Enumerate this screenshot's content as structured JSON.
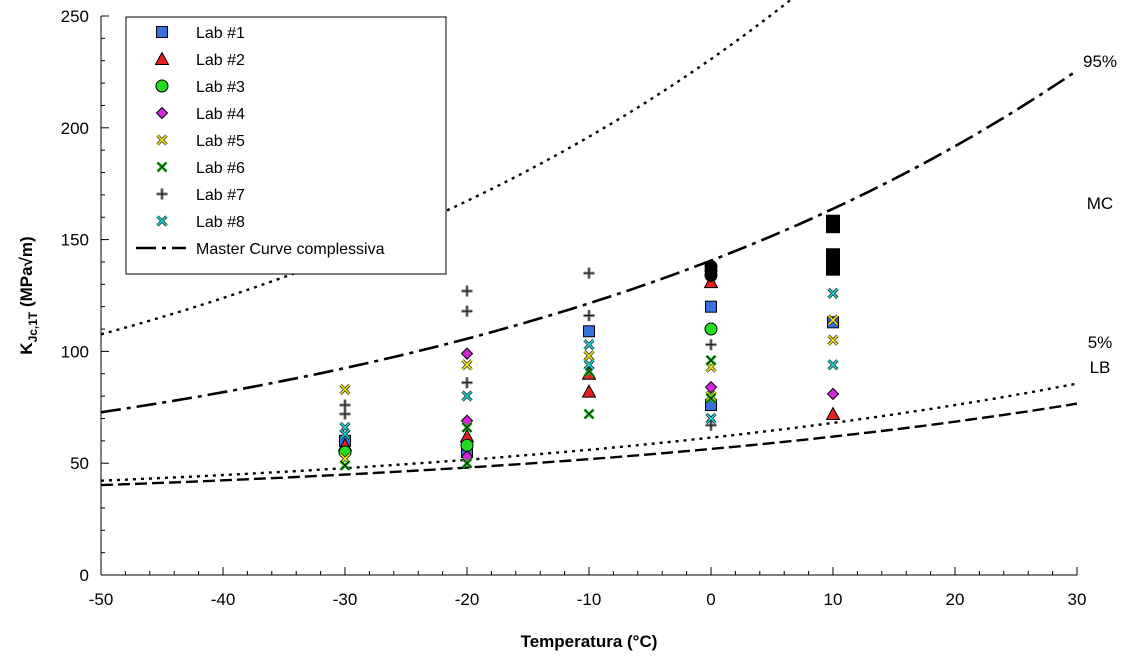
{
  "chart_data": {
    "type": "scatter",
    "xlabel": "Temperatura (°C)",
    "ylabel_main": "K",
    "ylabel_sub": "Jc,1T",
    "ylabel_unit": " (MPa√m)",
    "xlim": [
      -50,
      30
    ],
    "ylim": [
      0,
      250
    ],
    "x_ticks": [
      -50,
      -40,
      -30,
      -20,
      -10,
      0,
      10,
      20,
      30
    ],
    "y_ticks": [
      0,
      50,
      100,
      150,
      200,
      250
    ],
    "grid": false,
    "legend_position": "top-left",
    "series": [
      {
        "name": "Lab #1",
        "marker": "square",
        "color": "#3a6fe0",
        "points": [
          [
            -30,
            60
          ],
          [
            -20,
            55
          ],
          [
            -10,
            109
          ],
          [
            0,
            120
          ],
          [
            0,
            76
          ],
          [
            10,
            113
          ]
        ]
      },
      {
        "name": "Lab #2",
        "marker": "triangle",
        "color": "#e82020",
        "points": [
          [
            -30,
            58
          ],
          [
            -20,
            62
          ],
          [
            -10,
            82
          ],
          [
            -10,
            90
          ],
          [
            0,
            131
          ],
          [
            10,
            72
          ]
        ]
      },
      {
        "name": "Lab #3",
        "marker": "circle",
        "color": "#22dd22",
        "points": [
          [
            -30,
            55
          ],
          [
            -20,
            58
          ],
          [
            0,
            110
          ]
        ]
      },
      {
        "name": "Lab #4",
        "marker": "diamond",
        "color": "#dd22dd",
        "points": [
          [
            -20,
            99
          ],
          [
            -20,
            69
          ],
          [
            -20,
            53
          ],
          [
            0,
            84
          ],
          [
            10,
            81
          ]
        ]
      },
      {
        "name": "Lab #5",
        "marker": "x",
        "color": "#f0e020",
        "points": [
          [
            -30,
            83
          ],
          [
            -30,
            52
          ],
          [
            -20,
            94
          ],
          [
            -10,
            98
          ],
          [
            0,
            93
          ],
          [
            0,
            80
          ],
          [
            10,
            114
          ],
          [
            10,
            105
          ]
        ]
      },
      {
        "name": "Lab #6",
        "marker": "xbox",
        "color": "#22bb22",
        "points": [
          [
            -30,
            49
          ],
          [
            -20,
            66
          ],
          [
            -20,
            50
          ],
          [
            -10,
            91
          ],
          [
            -10,
            72
          ],
          [
            0,
            96
          ],
          [
            0,
            79
          ],
          [
            10,
            137
          ]
        ]
      },
      {
        "name": "Lab #7",
        "marker": "plus",
        "color": "#888888",
        "points": [
          [
            -30,
            76
          ],
          [
            -30,
            72
          ],
          [
            -20,
            127
          ],
          [
            -20,
            118
          ],
          [
            -20,
            86
          ],
          [
            -10,
            135
          ],
          [
            -10,
            116
          ],
          [
            0,
            103
          ],
          [
            0,
            67
          ]
        ]
      },
      {
        "name": "Lab #8",
        "marker": "x",
        "color": "#22cccc",
        "points": [
          [
            -30,
            66
          ],
          [
            -30,
            63
          ],
          [
            -20,
            80
          ],
          [
            -10,
            103
          ],
          [
            -10,
            94
          ],
          [
            0,
            70
          ],
          [
            10,
            126
          ],
          [
            10,
            94
          ]
        ]
      }
    ],
    "black_markers": [
      [
        10,
        158
      ],
      [
        10,
        156
      ],
      [
        10,
        143
      ],
      [
        10,
        137
      ],
      [
        0,
        138
      ],
      [
        0,
        136
      ],
      [
        0,
        134
      ]
    ],
    "curves": {
      "master_curve": {
        "name": "Master Curve complessiva",
        "label": "MC",
        "a": 30,
        "b": 76.33,
        "c": 0.019,
        "T0": -19.53
      },
      "pct95": {
        "label": "95%",
        "a": 30,
        "b": 138.5,
        "c": 0.019,
        "T0": -19.53
      },
      "pct5": {
        "label": "5%",
        "a": 30,
        "b": 21.7,
        "c": 0.019,
        "T0": -19.53
      },
      "lb": {
        "label": "LB",
        "a": 30,
        "b": 18.2,
        "c": 0.019,
        "T0": -19.53
      }
    }
  }
}
